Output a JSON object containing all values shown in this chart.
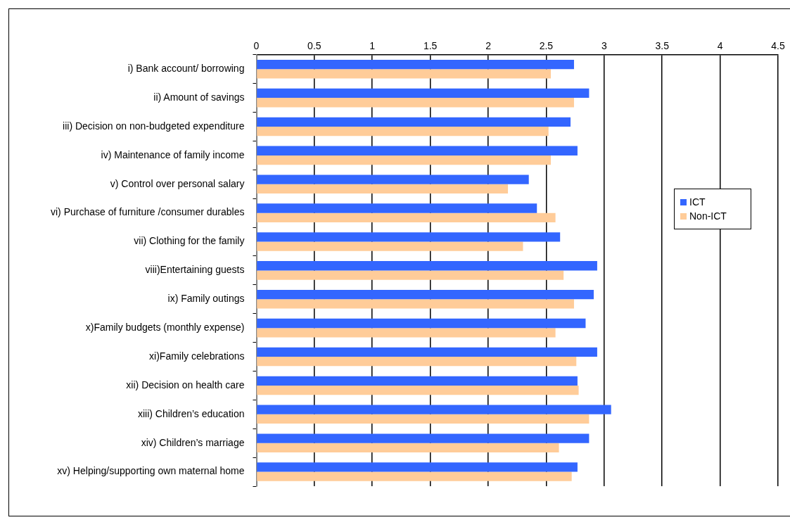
{
  "chart_data": {
    "type": "bar",
    "orientation": "horizontal",
    "categories": [
      "i) Bank account/ borrowing",
      "ii) Amount of savings",
      "iii) Decision on non-budgeted expenditure",
      "iv) Maintenance of family income",
      "v) Control over personal salary",
      "vi) Purchase of furniture /consumer durables",
      "vii) Clothing for the family",
      "viii)Entertaining guests",
      "ix) Family outings",
      "x)Family budgets (monthly expense)",
      "xi)Family celebrations",
      "xii) Decision on health care",
      "xiii) Children’s education",
      "xiv) Children’s marriage",
      "xv) Helping/supporting own maternal home"
    ],
    "series": [
      {
        "name": "ICT",
        "color": "#3366ff",
        "values": [
          2.74,
          2.87,
          2.71,
          2.77,
          2.35,
          2.42,
          2.62,
          2.94,
          2.91,
          2.84,
          2.94,
          2.77,
          3.06,
          2.87,
          2.77
        ]
      },
      {
        "name": "Non-ICT",
        "color": "#ffcc99",
        "values": [
          2.54,
          2.74,
          2.52,
          2.54,
          2.17,
          2.58,
          2.3,
          2.65,
          2.74,
          2.58,
          2.76,
          2.78,
          2.87,
          2.61,
          2.72
        ]
      }
    ],
    "xlim": [
      0,
      4.5
    ],
    "xticks": [
      0,
      0.5,
      1,
      1.5,
      2,
      2.5,
      3,
      3.5,
      4,
      4.5
    ],
    "grid": "x",
    "legend": "right"
  }
}
